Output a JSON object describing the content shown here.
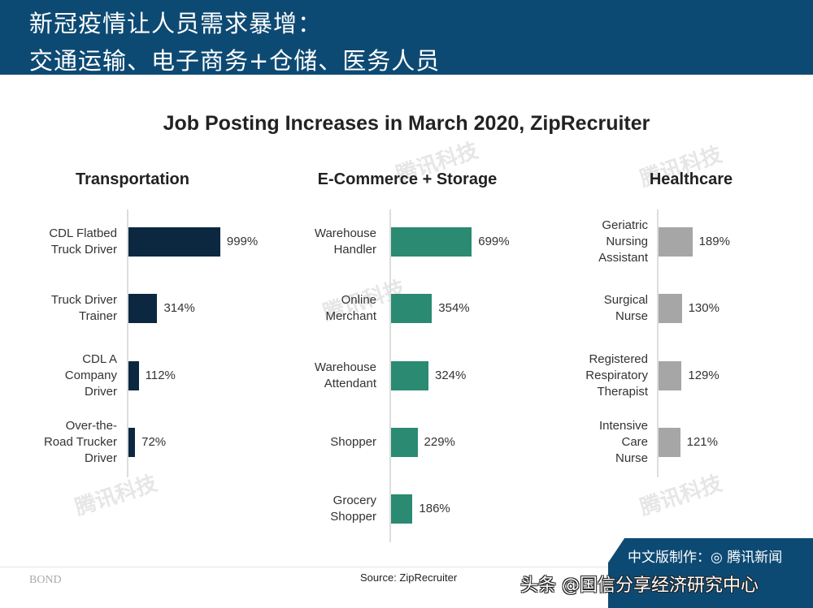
{
  "header": {
    "line1": "新冠疫情让人员需求暴增：",
    "line2": "交通运输、电子商务+仓储、医务人员"
  },
  "chart_data": [
    {
      "type": "bar",
      "orientation": "horizontal",
      "title": "Transportation",
      "color": "#0c2840",
      "categories": [
        "CDL Flatbed Truck Driver",
        "Truck Driver Trainer",
        "CDL A Company Driver",
        "Over-the-Road Trucker Driver"
      ],
      "values": [
        999,
        314,
        112,
        72
      ],
      "value_labels": [
        "999%",
        "314%",
        "112%",
        "72%"
      ]
    },
    {
      "type": "bar",
      "orientation": "horizontal",
      "title": "E-Commerce + Storage",
      "color": "#2a8a72",
      "categories": [
        "Warehouse Handler",
        "Online Merchant",
        "Warehouse Attendant",
        "Shopper",
        "Grocery Shopper"
      ],
      "values": [
        699,
        354,
        324,
        229,
        186
      ],
      "value_labels": [
        "699%",
        "354%",
        "324%",
        "229%",
        "186%"
      ]
    },
    {
      "type": "bar",
      "orientation": "horizontal",
      "title": "Healthcare",
      "color": "#a6a6a6",
      "categories": [
        "Geriatric Nursing Assistant",
        "Surgical Nurse",
        "Registered Respiratory Therapist",
        "Intensive Care Nurse"
      ],
      "values": [
        189,
        130,
        129,
        121
      ],
      "value_labels": [
        "189%",
        "130%",
        "129%",
        "121%"
      ]
    }
  ],
  "chart": {
    "title": "Job Posting Increases in March 2020, ZipRecruiter",
    "panels": [
      {
        "title": "Transportation",
        "labels": [
          [
            "CDL Flatbed",
            "Truck Driver"
          ],
          [
            "Truck Driver",
            "Trainer"
          ],
          [
            "CDL A",
            "Company",
            "Driver"
          ],
          [
            "Over-the-",
            "Road Trucker",
            "Driver"
          ]
        ],
        "values": [
          "999%",
          "314%",
          "112%",
          "72%"
        ]
      },
      {
        "title": "E-Commerce + Storage",
        "labels": [
          [
            "Warehouse",
            "Handler"
          ],
          [
            "Online",
            "Merchant"
          ],
          [
            "Warehouse",
            "Attendant"
          ],
          [
            "Shopper"
          ],
          [
            "Grocery",
            "Shopper"
          ]
        ],
        "values": [
          "699%",
          "354%",
          "324%",
          "229%",
          "186%"
        ]
      },
      {
        "title": "Healthcare",
        "labels": [
          [
            "Geriatric",
            "Nursing",
            "Assistant"
          ],
          [
            "Surgical",
            "Nurse"
          ],
          [
            "Registered",
            "Respiratory",
            "Therapist"
          ],
          [
            "Intensive",
            "Care",
            "Nurse"
          ]
        ],
        "values": [
          "189%",
          "130%",
          "129%",
          "121%"
        ]
      }
    ]
  },
  "footer": {
    "logo": "BOND",
    "source": "Source: ZipRecruiter",
    "badge": "中文版制作：◎ 腾讯新闻",
    "overlay": "头条 @国信分享经济研究中心"
  },
  "watermark": "腾讯科技"
}
